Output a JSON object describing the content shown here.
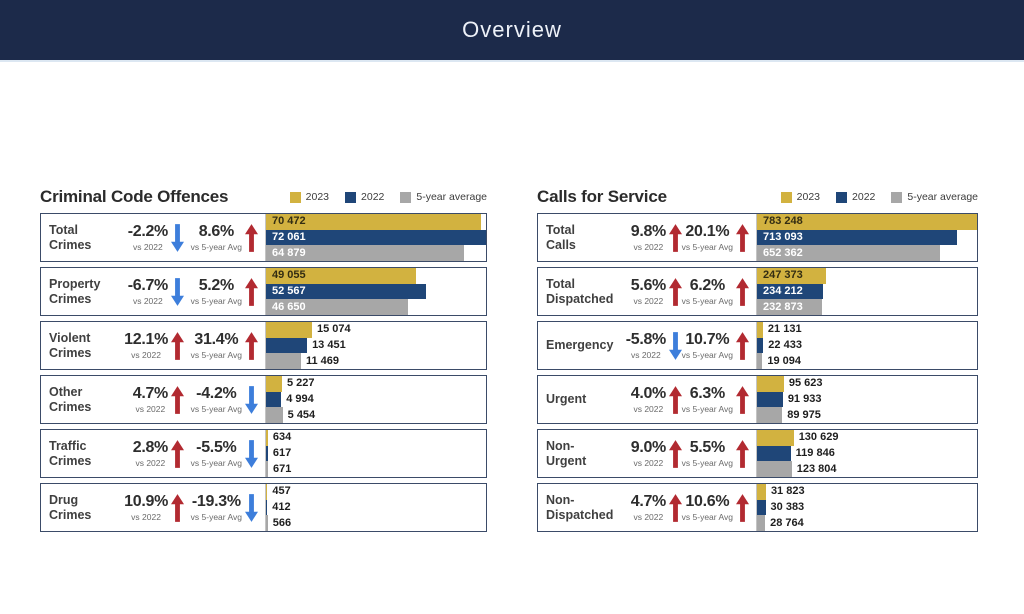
{
  "header": {
    "title": "Overview",
    "bg_color": "#1c2a4a"
  },
  "captions": {
    "vs_2022": "vs 2022",
    "vs_5yr": "vs 5-year Avg"
  },
  "legend": {
    "items": [
      {
        "label": "2023",
        "color": "#d2b240"
      },
      {
        "label": "2022",
        "color": "#1f4678"
      },
      {
        "label": "5-year average",
        "color": "#a7a7a7"
      }
    ]
  },
  "colors": {
    "up_arrow": "#b22a31",
    "down_arrow": "#3d7edb",
    "row_border": "#3b4b68",
    "bar_2023": "#d2b240",
    "bar_2022": "#1f4678",
    "bar_5yr": "#a7a7a7"
  },
  "chart_data": [
    {
      "type": "bar",
      "title": "Criminal Code Offences",
      "series_names": [
        "2023",
        "2022",
        "5-year average"
      ],
      "xlim": [
        0,
        72061
      ],
      "max": 72061,
      "legend_position": "top-right",
      "rows": [
        {
          "label": "Total\nCrimes",
          "vs_2022": "-2.2%",
          "vs_2022_dir": "down",
          "vs_5yr": "8.6%",
          "vs_5yr_dir": "up",
          "values": [
            70472,
            72061,
            64879
          ],
          "value_labels": [
            "70 472",
            "72 061",
            "64 879"
          ]
        },
        {
          "label": "Property\nCrimes",
          "vs_2022": "-6.7%",
          "vs_2022_dir": "down",
          "vs_5yr": "5.2%",
          "vs_5yr_dir": "up",
          "values": [
            49055,
            52567,
            46650
          ],
          "value_labels": [
            "49 055",
            "52 567",
            "46 650"
          ]
        },
        {
          "label": "Violent\nCrimes",
          "vs_2022": "12.1%",
          "vs_2022_dir": "up",
          "vs_5yr": "31.4%",
          "vs_5yr_dir": "up",
          "values": [
            15074,
            13451,
            11469
          ],
          "value_labels": [
            "15 074",
            "13 451",
            "11 469"
          ]
        },
        {
          "label": "Other\nCrimes",
          "vs_2022": "4.7%",
          "vs_2022_dir": "up",
          "vs_5yr": "-4.2%",
          "vs_5yr_dir": "down",
          "values": [
            5227,
            4994,
            5454
          ],
          "value_labels": [
            "5 227",
            "4 994",
            "5 454"
          ]
        },
        {
          "label": "Traffic\nCrimes",
          "vs_2022": "2.8%",
          "vs_2022_dir": "up",
          "vs_5yr": "-5.5%",
          "vs_5yr_dir": "down",
          "values": [
            634,
            617,
            671
          ],
          "value_labels": [
            "634",
            "617",
            "671"
          ]
        },
        {
          "label": "Drug\nCrimes",
          "vs_2022": "10.9%",
          "vs_2022_dir": "up",
          "vs_5yr": "-19.3%",
          "vs_5yr_dir": "down",
          "values": [
            457,
            412,
            566
          ],
          "value_labels": [
            "457",
            "412",
            "566"
          ]
        }
      ]
    },
    {
      "type": "bar",
      "title": "Calls for Service",
      "series_names": [
        "2023",
        "2022",
        "5-year average"
      ],
      "xlim": [
        0,
        783248
      ],
      "max": 783248,
      "legend_position": "top-right",
      "rows": [
        {
          "label": "Total\nCalls",
          "vs_2022": "9.8%",
          "vs_2022_dir": "up",
          "vs_5yr": "20.1%",
          "vs_5yr_dir": "up",
          "values": [
            783248,
            713093,
            652362
          ],
          "value_labels": [
            "783 248",
            "713 093",
            "652 362"
          ]
        },
        {
          "label": "Total\nDispatched",
          "vs_2022": "5.6%",
          "vs_2022_dir": "up",
          "vs_5yr": "6.2%",
          "vs_5yr_dir": "up",
          "values": [
            247373,
            234212,
            232873
          ],
          "value_labels": [
            "247 373",
            "234 212",
            "232 873"
          ]
        },
        {
          "label": "Emergency",
          "vs_2022": "-5.8%",
          "vs_2022_dir": "down",
          "vs_5yr": "10.7%",
          "vs_5yr_dir": "up",
          "values": [
            21131,
            22433,
            19094
          ],
          "value_labels": [
            "21 131",
            "22 433",
            "19 094"
          ]
        },
        {
          "label": "Urgent",
          "vs_2022": "4.0%",
          "vs_2022_dir": "up",
          "vs_5yr": "6.3%",
          "vs_5yr_dir": "up",
          "values": [
            95623,
            91933,
            89975
          ],
          "value_labels": [
            "95 623",
            "91 933",
            "89 975"
          ]
        },
        {
          "label": "Non-\nUrgent",
          "vs_2022": "9.0%",
          "vs_2022_dir": "up",
          "vs_5yr": "5.5%",
          "vs_5yr_dir": "up",
          "values": [
            130629,
            119846,
            123804
          ],
          "value_labels": [
            "130 629",
            "119 846",
            "123 804"
          ]
        },
        {
          "label": "Non-\nDispatched",
          "vs_2022": "4.7%",
          "vs_2022_dir": "up",
          "vs_5yr": "10.6%",
          "vs_5yr_dir": "up",
          "values": [
            31823,
            30383,
            28764
          ],
          "value_labels": [
            "31 823",
            "30 383",
            "28 764"
          ]
        }
      ]
    }
  ]
}
